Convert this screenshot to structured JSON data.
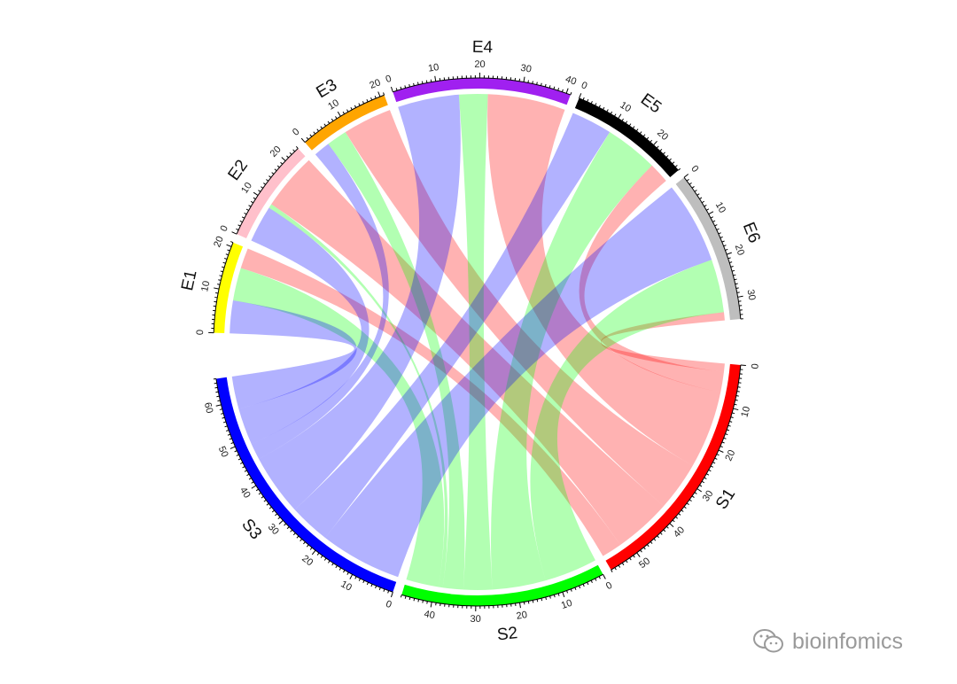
{
  "chart_data": {
    "type": "chord",
    "title": "",
    "rows": [
      "S1",
      "S2",
      "S3"
    ],
    "columns": [
      "E1",
      "E2",
      "E3",
      "E4",
      "E5",
      "E6"
    ],
    "matrix": [
      [
        5,
        14,
        12,
        19,
        5,
        2
      ],
      [
        8,
        1,
        5,
        7,
        13,
        13
      ],
      [
        8,
        9,
        4,
        15,
        10,
        20
      ]
    ],
    "sector_colors": {
      "S1": "#FF0000",
      "S2": "#00FF00",
      "S3": "#0000FF",
      "E1": "#FFFF00",
      "E2": "#FFC0CB",
      "E3": "#FFA500",
      "E4": "#A020F0",
      "E5": "#000000",
      "E6": "#BEBEBE"
    },
    "link_color_by": "row",
    "link_opacity": 0.3,
    "major_tick_interval": 10,
    "minor_tick_interval": 1
  },
  "watermark": {
    "text": "bioinfomics",
    "icon": "wechat-icon"
  }
}
